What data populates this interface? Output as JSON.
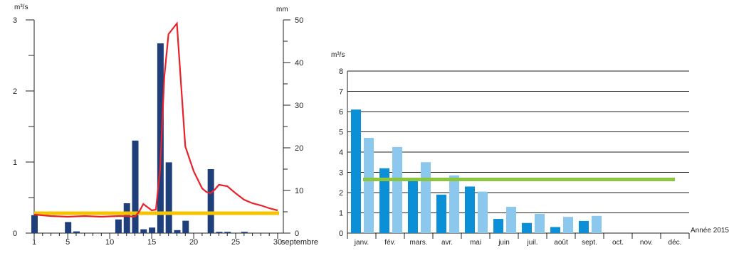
{
  "chart_data": [
    {
      "type": "bar+line",
      "title": "",
      "x_axis": {
        "min": 1,
        "max": 30,
        "ticks": [
          1,
          5,
          10,
          15,
          20,
          25,
          30
        ],
        "end_label": "septembre"
      },
      "y_left": {
        "unit": "m³/s",
        "min": 0,
        "max": 3,
        "ticks": [
          0,
          1,
          2,
          3
        ]
      },
      "y_right": {
        "unit": "mm",
        "min": 0,
        "max": 50,
        "ticks": [
          0,
          10,
          20,
          30,
          40,
          50
        ]
      },
      "colors": {
        "rain": "#1f3f7a",
        "flow": "#e8222b",
        "reference": "#f5c400"
      },
      "rain_bars_mm": [
        {
          "day": 1,
          "mm": 4.2
        },
        {
          "day": 5,
          "mm": 2.6
        },
        {
          "day": 6,
          "mm": 0.4
        },
        {
          "day": 11,
          "mm": 3.2
        },
        {
          "day": 12,
          "mm": 7.0
        },
        {
          "day": 13,
          "mm": 21.7
        },
        {
          "day": 14,
          "mm": 0.9
        },
        {
          "day": 15,
          "mm": 1.3
        },
        {
          "day": 16,
          "mm": 44.5
        },
        {
          "day": 17,
          "mm": 16.6
        },
        {
          "day": 18,
          "mm": 0.7
        },
        {
          "day": 19,
          "mm": 2.9
        },
        {
          "day": 22,
          "mm": 15.0
        },
        {
          "day": 23,
          "mm": 0.3
        },
        {
          "day": 24,
          "mm": 0.3
        },
        {
          "day": 26,
          "mm": 0.3
        }
      ],
      "flow_line_m3s": {
        "x": [
          1,
          3,
          5,
          7,
          9,
          11,
          12,
          13,
          13.5,
          14,
          15,
          15.5,
          16,
          16.5,
          17,
          18,
          19,
          20,
          21,
          21.5,
          22,
          22.5,
          23,
          24,
          25,
          26,
          27,
          28,
          29,
          30
        ],
        "y": [
          0.26,
          0.24,
          0.23,
          0.24,
          0.23,
          0.24,
          0.24,
          0.23,
          0.3,
          0.41,
          0.32,
          0.33,
          0.9,
          2.2,
          2.8,
          2.95,
          1.22,
          0.87,
          0.63,
          0.58,
          0.56,
          0.61,
          0.68,
          0.66,
          0.56,
          0.47,
          0.42,
          0.39,
          0.35,
          0.32
        ]
      },
      "reference_line_m3s": 0.28
    },
    {
      "type": "bar",
      "title": "Année 2015",
      "y_axis": {
        "unit": "m³/s",
        "min": 0,
        "max": 8,
        "ticks": [
          0,
          1,
          2,
          3,
          4,
          5,
          6,
          7,
          8
        ]
      },
      "categories": [
        "janv.",
        "fév.",
        "mars.",
        "avr.",
        "mai",
        "juin",
        "juil.",
        "août",
        "sept.",
        "oct.",
        "nov.",
        "déc."
      ],
      "series": [
        {
          "color": "#0b8fd6",
          "values": [
            6.1,
            3.2,
            2.6,
            1.9,
            2.3,
            0.7,
            0.5,
            0.3,
            0.6,
            null,
            null,
            null
          ]
        },
        {
          "color": "#8cc8ee",
          "values": [
            4.7,
            4.25,
            3.5,
            2.85,
            2.05,
            1.3,
            0.95,
            0.8,
            0.85,
            null,
            null,
            null
          ]
        }
      ],
      "reference_line": {
        "value": 2.65,
        "color": "#8cc63f"
      }
    }
  ]
}
